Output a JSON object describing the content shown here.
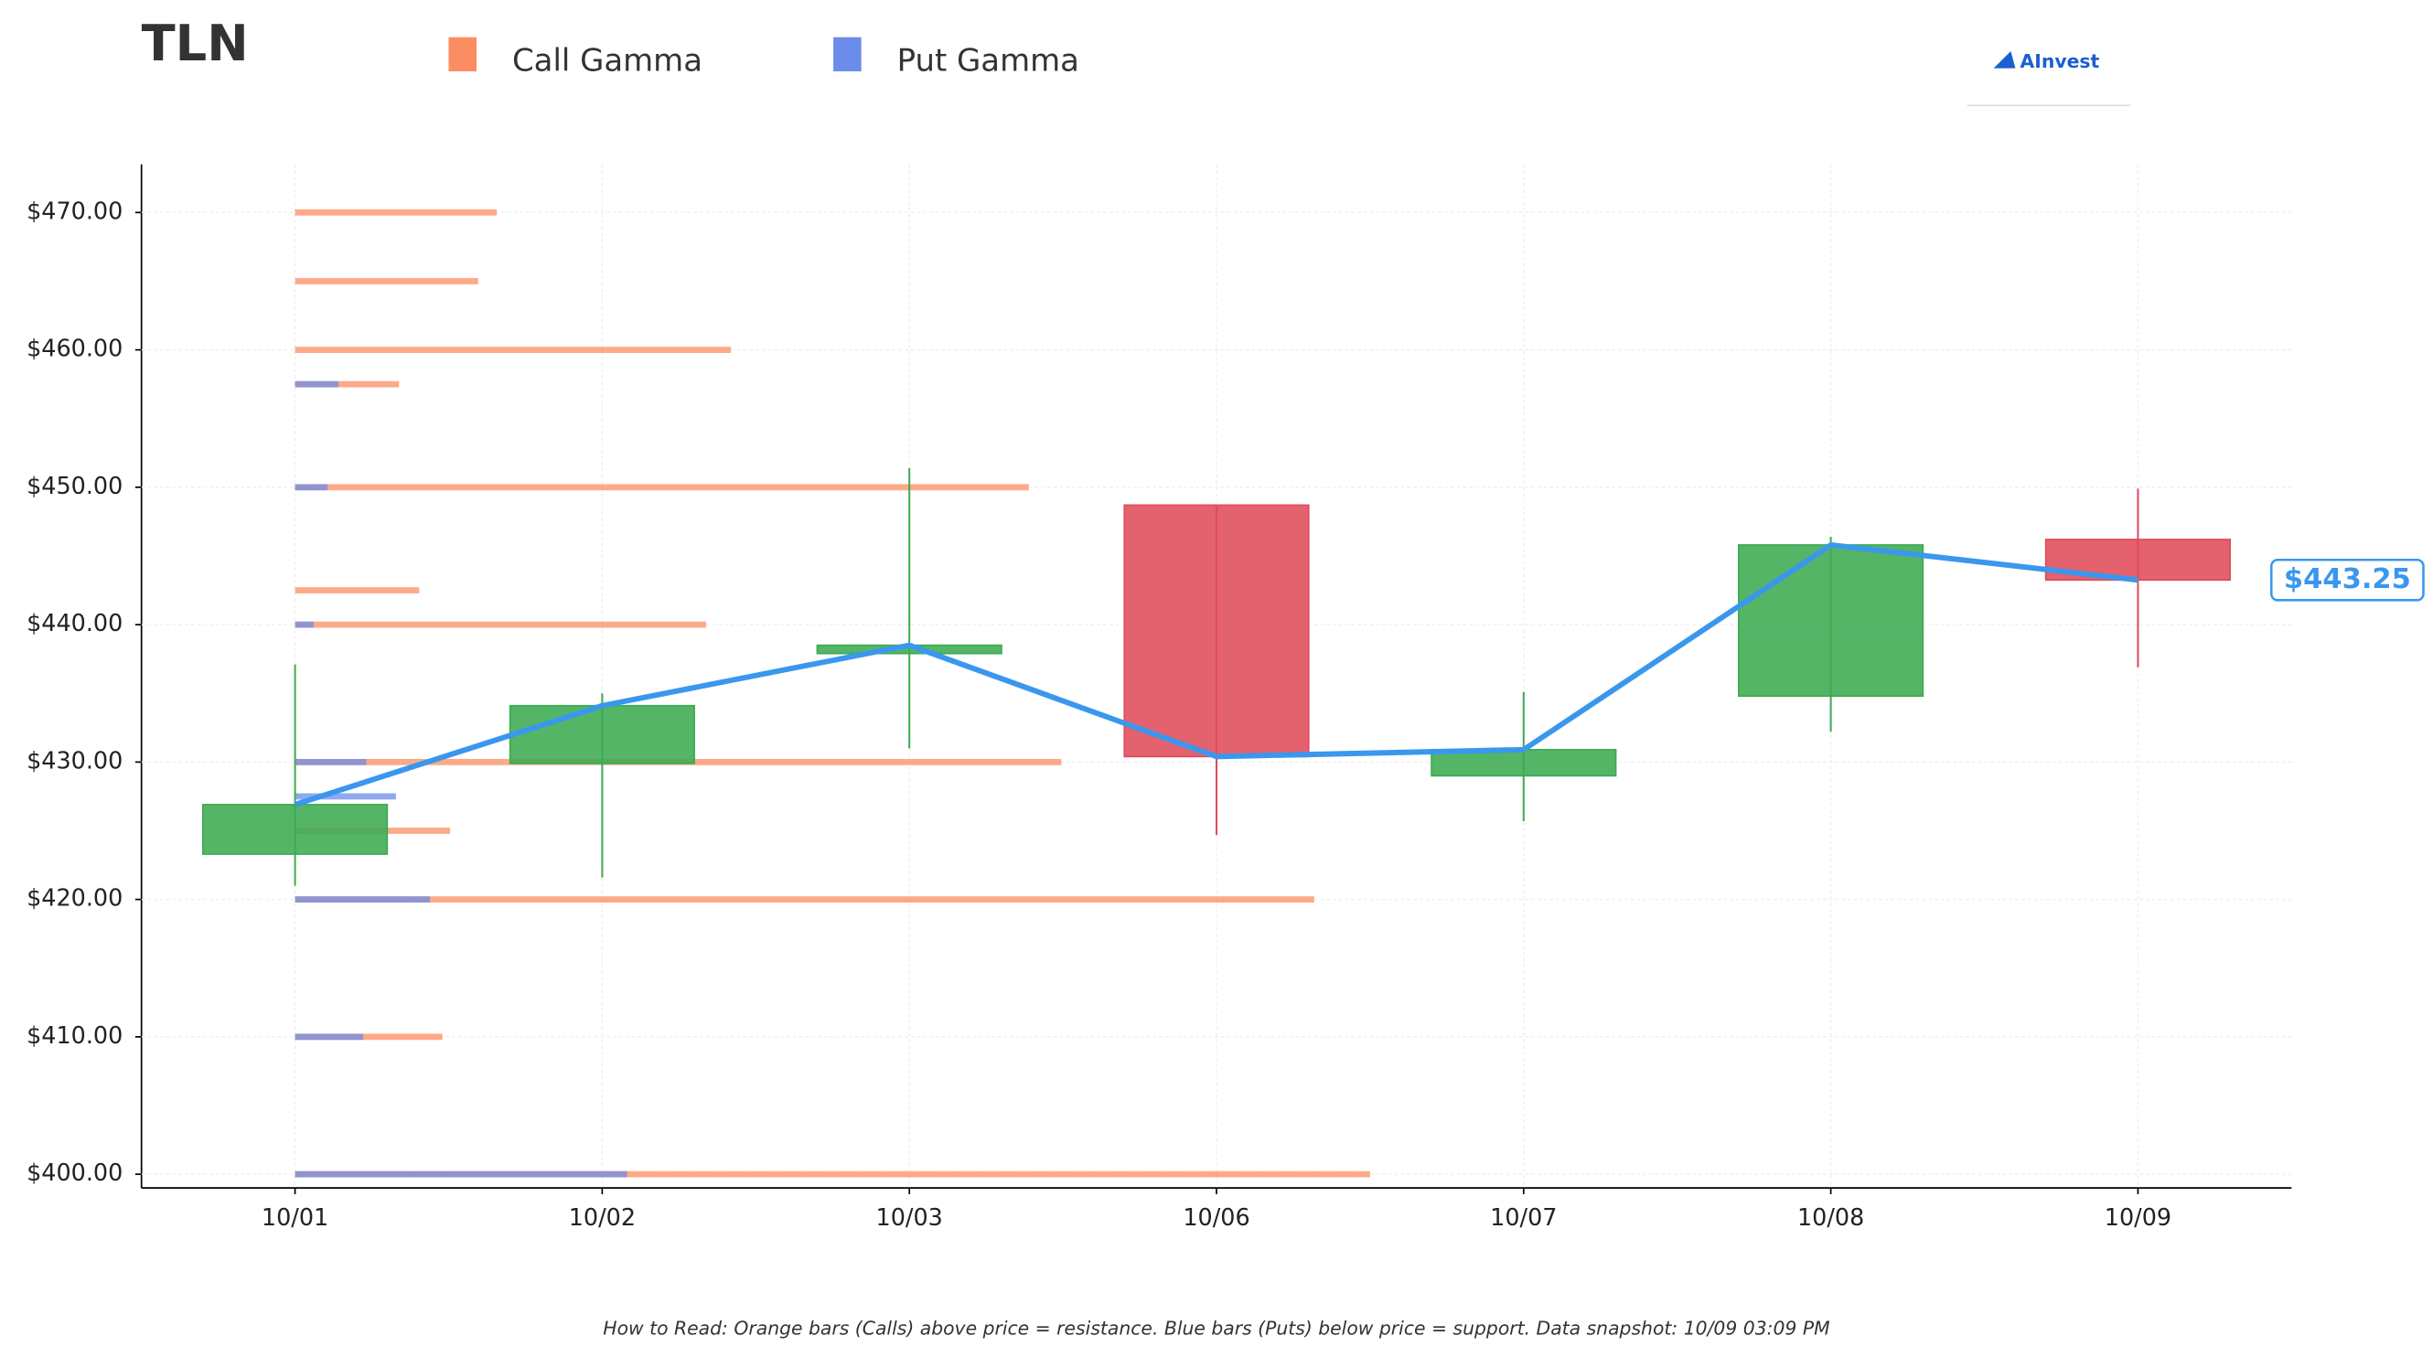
{
  "chart_data": {
    "type": "candlestick",
    "title": "TLN",
    "brand": "AInvest",
    "footnote": "How to Read: Orange bars (Calls) above price = resistance. Blue bars (Puts) below price = support. Data snapshot: 10/09 03:09 PM",
    "categories": [
      "10/01",
      "10/02",
      "10/03",
      "10/06",
      "10/07",
      "10/08",
      "10/09"
    ],
    "open": [
      423.3,
      429.9,
      437.9,
      448.7,
      429.0,
      434.8,
      446.2
    ],
    "high": [
      437.1,
      435.0,
      451.4,
      448.7,
      435.1,
      446.4,
      449.9
    ],
    "low": [
      421.0,
      421.6,
      431.0,
      424.7,
      425.7,
      432.2,
      436.9
    ],
    "close": [
      426.9,
      434.1,
      438.5,
      430.4,
      430.9,
      445.8,
      443.25
    ],
    "up_color": "#3cab52",
    "down_color": "#e04b5a",
    "line_color": "#3a97ee",
    "price_label": "$443.25",
    "ylim": [
      399,
      473.5
    ],
    "yticks": [
      {
        "value": 400,
        "label": "$400.00"
      },
      {
        "value": 410,
        "label": "$410.00"
      },
      {
        "value": 420,
        "label": "$420.00"
      },
      {
        "value": 430,
        "label": "$430.00"
      },
      {
        "value": 440,
        "label": "$440.00"
      },
      {
        "value": 450,
        "label": "$450.00"
      },
      {
        "value": 460,
        "label": "$460.00"
      },
      {
        "value": 470,
        "label": "$470.00"
      }
    ],
    "grid": true,
    "strikes": [
      470,
      465,
      460,
      457.5,
      450,
      442.5,
      440,
      430,
      427.5,
      425,
      420,
      410,
      400
    ],
    "gamma_series": [
      {
        "name": "Call Gamma",
        "color": "#fc8d62",
        "values": [
          130,
          118,
          281,
          67,
          473,
          80,
          265,
          494,
          null,
          100,
          657,
          95,
          693
        ]
      },
      {
        "name": "Put Gamma",
        "color": "#6b8ce8",
        "values": [
          null,
          null,
          null,
          28,
          21,
          null,
          12,
          46,
          65,
          null,
          87,
          44,
          214
        ]
      }
    ]
  }
}
